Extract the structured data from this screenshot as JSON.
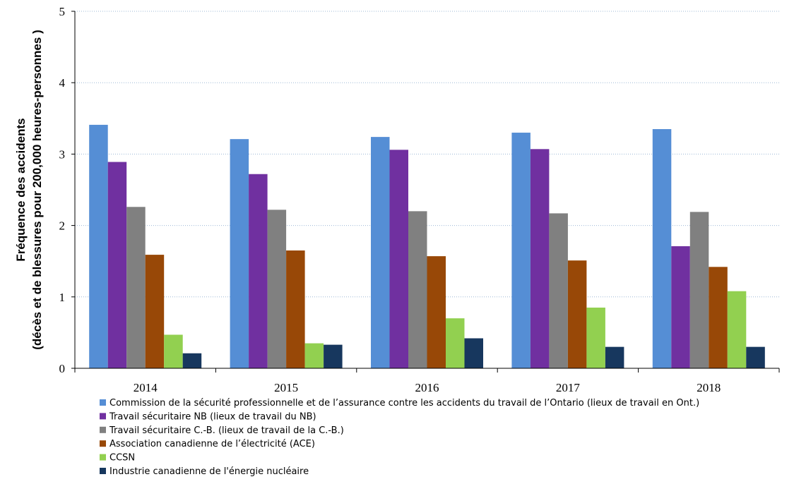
{
  "chart_data": {
    "type": "bar",
    "title": "",
    "xlabel": "",
    "ylabel_line1": "Fréquence des accidents",
    "ylabel_line2": "(décès et de blessures pour 200,000 heures-personnes )",
    "categories": [
      "2014",
      "2015",
      "2016",
      "2017",
      "2018"
    ],
    "ylim": [
      0,
      5
    ],
    "yticks": [
      "0",
      "1",
      "2",
      "3",
      "4",
      "5"
    ],
    "grid": "horizontal dotted",
    "legend_position": "bottom",
    "series": [
      {
        "name": "Commission de la sécurité professionnelle et de l’assurance contre les accidents du travail de l’Ontario (lieux de travail en  Ont.)",
        "color": "#558ED5",
        "values": [
          3.41,
          3.21,
          3.24,
          3.3,
          3.35
        ]
      },
      {
        "name": "Travail sécuritaire NB (lieux de travail du NB)",
        "color": "#7030A0",
        "values": [
          2.89,
          2.72,
          3.06,
          3.07,
          1.71
        ]
      },
      {
        "name": "Travail sécuritaire C.-B. (lieux de travail de la C.-B.)",
        "color": "#808080",
        "values": [
          2.26,
          2.22,
          2.2,
          2.17,
          2.19
        ]
      },
      {
        "name": "Association canadienne de l’électricité (ACE)",
        "color": "#984807",
        "values": [
          1.59,
          1.65,
          1.57,
          1.51,
          1.42
        ]
      },
      {
        "name": "CCSN",
        "color": "#92D050",
        "values": [
          0.47,
          0.35,
          0.7,
          0.85,
          1.08
        ]
      },
      {
        "name": "Industrie canadienne de l'énergie nucléaire",
        "color": "#17375E",
        "values": [
          0.21,
          0.33,
          0.42,
          0.3,
          0.3
        ]
      }
    ]
  }
}
